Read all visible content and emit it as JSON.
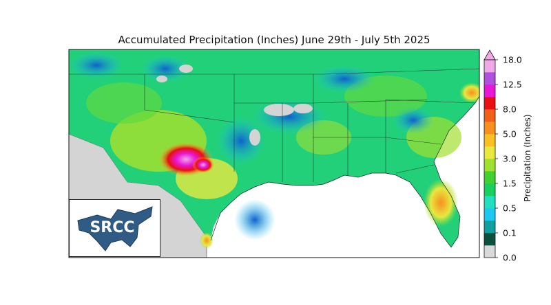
{
  "map": {
    "title": "Accumulated Precipitation (Inches) June 29th - July 5th 2025"
  },
  "colorbar": {
    "label": "Precipitation (Inches)",
    "tick_labels": [
      "0.0",
      "0.1",
      "0.5",
      "1.5",
      "3.0",
      "5.0",
      "8.0",
      "12.5",
      "18.0"
    ],
    "colors": [
      "#d9d9d9",
      "#0b4f3f",
      "#11a0a0",
      "#1cc8f0",
      "#20e0c0",
      "#18d060",
      "#40d030",
      "#a0e030",
      "#e8e840",
      "#f8c020",
      "#f89020",
      "#f06018",
      "#e81010",
      "#e818d8",
      "#b050e0",
      "#f0a8e8"
    ]
  },
  "logo": {
    "text": "SRCC"
  }
}
